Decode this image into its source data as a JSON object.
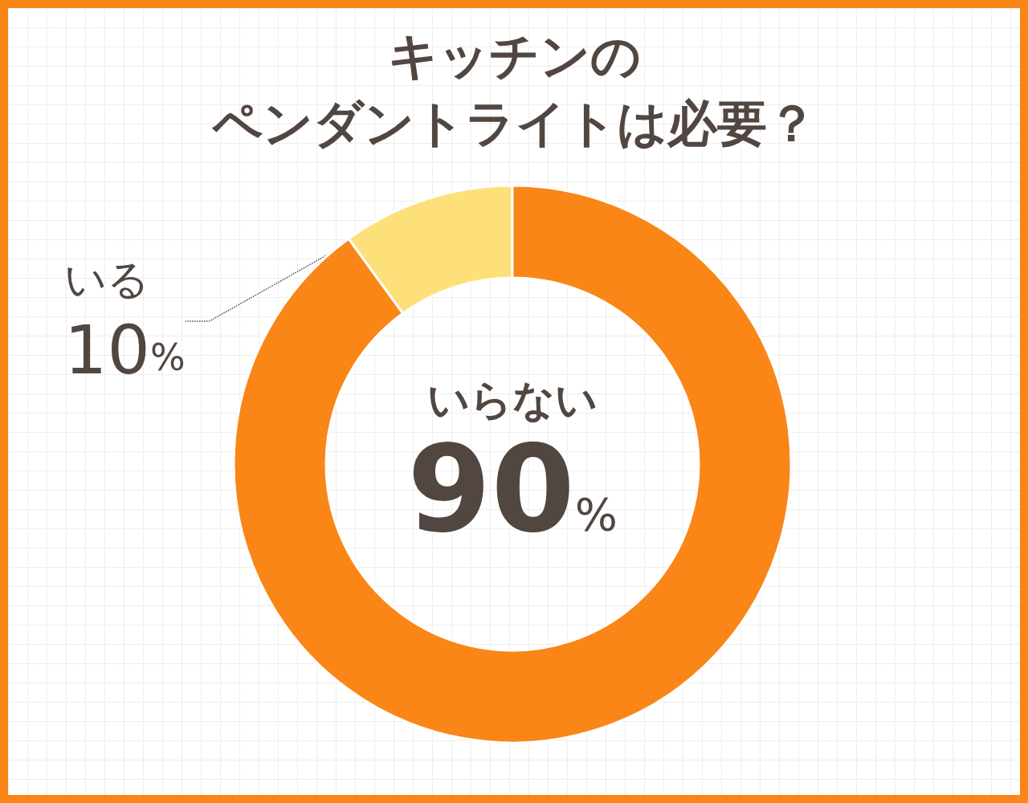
{
  "chart_data": {
    "type": "donut",
    "title": "キッチンのペンダントライトは必要？",
    "categories": [
      "いる",
      "いらない"
    ],
    "values": [
      10,
      90
    ],
    "colors": [
      "#fde07a",
      "#f98617"
    ],
    "value_labels": [
      "10%",
      "90%"
    ],
    "legend": false
  }
}
